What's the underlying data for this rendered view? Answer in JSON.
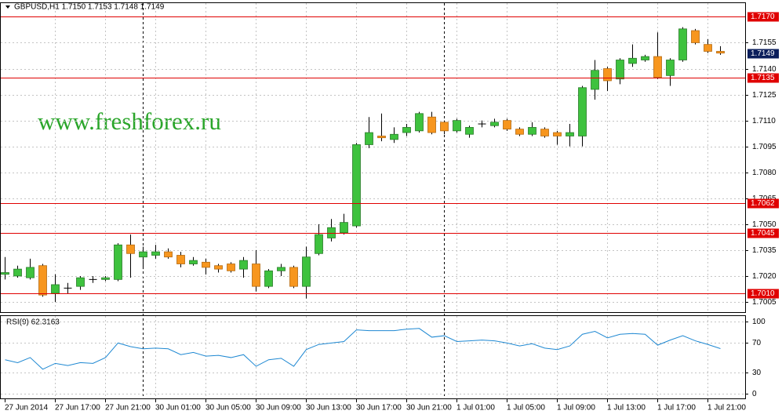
{
  "chart_data": [
    {
      "type": "candlestick",
      "title": "GBPUSD,H1 1.7150 1.7153 1.7148 1.7149",
      "watermark": "www.freshforex.ru",
      "categories": [
        "27 Jun 2014",
        null,
        null,
        null,
        "27 Jun 17:00",
        null,
        null,
        null,
        "27 Jun 21:00",
        null,
        null,
        null,
        "30 Jun 01:00",
        null,
        null,
        null,
        "30 Jun 05:00",
        null,
        null,
        null,
        "30 Jun 09:00",
        null,
        null,
        null,
        "30 Jun 13:00",
        null,
        null,
        null,
        "30 Jun 17:00",
        null,
        null,
        null,
        "30 Jun 21:00",
        null,
        null,
        null,
        "1 Jul 01:00",
        null,
        null,
        null,
        "1 Jul 05:00",
        null,
        null,
        null,
        "1 Jul 09:00",
        null,
        null,
        null,
        "1 Jul 13:00",
        null,
        null,
        null,
        "1 Jul 17:00",
        null,
        null,
        null,
        "1 Jul 21:00",
        null
      ],
      "open": [
        1.7021,
        1.702,
        1.7019,
        1.7026,
        1.701,
        1.7013,
        1.7014,
        1.7018,
        1.7018,
        1.7018,
        1.7038,
        1.7031,
        1.7032,
        1.7034,
        1.7032,
        1.7027,
        1.7028,
        1.7026,
        1.7027,
        1.7024,
        1.7027,
        1.7014,
        1.7023,
        1.7025,
        1.7014,
        1.7033,
        1.7042,
        1.7045,
        1.7049,
        1.7096,
        1.7101,
        1.7099,
        1.7103,
        1.7104,
        1.7112,
        1.7109,
        1.7104,
        1.7102,
        1.7108,
        1.7107,
        1.711,
        1.7105,
        1.7102,
        1.7105,
        1.7103,
        1.7101,
        1.7101,
        1.7128,
        1.714,
        1.7134,
        1.7143,
        1.7145,
        1.7147,
        1.7136,
        1.7145,
        1.7162,
        1.7154,
        1.715
      ],
      "high": [
        1.7031,
        1.7026,
        1.703,
        1.7027,
        1.7021,
        1.7016,
        1.702,
        1.702,
        1.702,
        1.7039,
        1.7044,
        1.7037,
        1.7038,
        1.7036,
        1.7034,
        1.7031,
        1.703,
        1.7027,
        1.7028,
        1.7031,
        1.7035,
        1.7024,
        1.7027,
        1.7026,
        1.7037,
        1.705,
        1.7053,
        1.7056,
        1.7097,
        1.7112,
        1.7114,
        1.7106,
        1.7108,
        1.7115,
        1.7115,
        1.711,
        1.7111,
        1.7107,
        1.711,
        1.7111,
        1.7111,
        1.7106,
        1.7109,
        1.7106,
        1.7104,
        1.7108,
        1.713,
        1.7145,
        1.7141,
        1.7146,
        1.7154,
        1.7148,
        1.7161,
        1.7146,
        1.7164,
        1.7163,
        1.7157,
        1.7153
      ],
      "low": [
        1.7018,
        1.7019,
        1.7018,
        1.7008,
        1.7005,
        1.701,
        1.7012,
        1.7016,
        1.7017,
        1.7017,
        1.7019,
        1.7024,
        1.703,
        1.703,
        1.7025,
        1.7026,
        1.7021,
        1.7022,
        1.7022,
        1.7019,
        1.7011,
        1.7013,
        1.702,
        1.7013,
        1.7007,
        1.7032,
        1.704,
        1.7044,
        1.7048,
        1.7094,
        1.7098,
        1.7097,
        1.7101,
        1.7103,
        1.7102,
        1.7102,
        1.7103,
        1.71,
        1.7106,
        1.7106,
        1.7104,
        1.7101,
        1.7101,
        1.71,
        1.7096,
        1.7095,
        1.7095,
        1.7122,
        1.7127,
        1.7131,
        1.7141,
        1.7144,
        1.7134,
        1.713,
        1.7144,
        1.7154,
        1.7149,
        1.7148
      ],
      "close": [
        1.7022,
        1.7024,
        1.7025,
        1.7009,
        1.7015,
        1.7013,
        1.7019,
        1.7018,
        1.7019,
        1.7038,
        1.7033,
        1.7034,
        1.7034,
        1.7031,
        1.7027,
        1.7029,
        1.7025,
        1.7024,
        1.7023,
        1.7029,
        1.7014,
        1.7023,
        1.7025,
        1.7014,
        1.7031,
        1.7044,
        1.7048,
        1.7051,
        1.7096,
        1.7103,
        1.71,
        1.7102,
        1.7106,
        1.7114,
        1.7103,
        1.7104,
        1.711,
        1.7106,
        1.7108,
        1.7109,
        1.7105,
        1.7102,
        1.7106,
        1.7101,
        1.7101,
        1.7103,
        1.7129,
        1.7139,
        1.7133,
        1.7145,
        1.7146,
        1.7147,
        1.7135,
        1.7145,
        1.7163,
        1.7155,
        1.715,
        1.7149
      ],
      "up_color": "#3ec23e",
      "down_color": "#f7961e",
      "ylim": [
        1.69991,
        1.71779
      ],
      "yticks": [
        1.7005,
        {
          "value": 1.702,
          "label": "1.7020"
        },
        1.7035,
        {
          "value": 1.705,
          "label": "1.7050"
        },
        1.7065,
        {
          "value": 1.708,
          "label": "1.7080"
        },
        1.7095,
        {
          "value": 1.711,
          "label": "1.7110"
        },
        1.7125,
        {
          "value": 1.714,
          "label": "1.7140"
        },
        1.7155
      ],
      "levels": [
        {
          "value": 1.717,
          "label": "1.7170"
        },
        1.7135,
        1.7062,
        1.7045,
        {
          "value": 1.701,
          "label": "1.7010"
        }
      ],
      "level_color": "#e00000",
      "current_price": 1.7149,
      "grid": true
    },
    {
      "type": "line",
      "title": "RSI(9) 62.3163",
      "color": "#1e88d2",
      "values": [
        47,
        43,
        50,
        34,
        42,
        39,
        43,
        42,
        50,
        70,
        65,
        62,
        63,
        62,
        54,
        57,
        52,
        53,
        50,
        54,
        38,
        47,
        49,
        38,
        61,
        68,
        70,
        72,
        88,
        87,
        87,
        87,
        89,
        90,
        78,
        80,
        72,
        73,
        74,
        73,
        70,
        66,
        69,
        63,
        61,
        66,
        82,
        86,
        77,
        82,
        83,
        82,
        67,
        74,
        80,
        73,
        68,
        62.3163
      ],
      "ylim": [
        -5,
        107
      ],
      "yticks": [
        100,
        70,
        30,
        0
      ]
    }
  ]
}
